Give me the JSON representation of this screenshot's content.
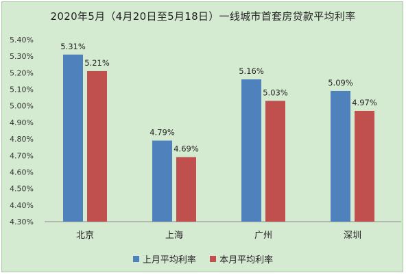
{
  "chart_data": {
    "type": "bar",
    "title": "2020年5月（4月20日至5月18日）一线城市首套房贷款平均利率",
    "categories": [
      "北京",
      "上海",
      "广州",
      "深圳"
    ],
    "series": [
      {
        "name": "上月平均利率",
        "values": [
          5.31,
          4.79,
          5.16,
          5.09
        ],
        "color": "#4f81bd"
      },
      {
        "name": "本月平均利率",
        "values": [
          5.21,
          4.69,
          5.03,
          4.97
        ],
        "color": "#c0504d"
      }
    ],
    "data_labels": [
      [
        "5.31%",
        "4.79%",
        "5.16%",
        "5.09%"
      ],
      [
        "5.21%",
        "4.69%",
        "5.03%",
        "4.97%"
      ]
    ],
    "ylim": [
      4.3,
      5.4
    ],
    "yticks": [
      "4.30%",
      "4.40%",
      "4.50%",
      "4.60%",
      "4.70%",
      "4.80%",
      "4.90%",
      "5.00%",
      "5.10%",
      "5.20%",
      "5.30%",
      "5.40%"
    ],
    "xlabel": "",
    "ylabel": "",
    "grid": false,
    "legend": "bottom"
  }
}
